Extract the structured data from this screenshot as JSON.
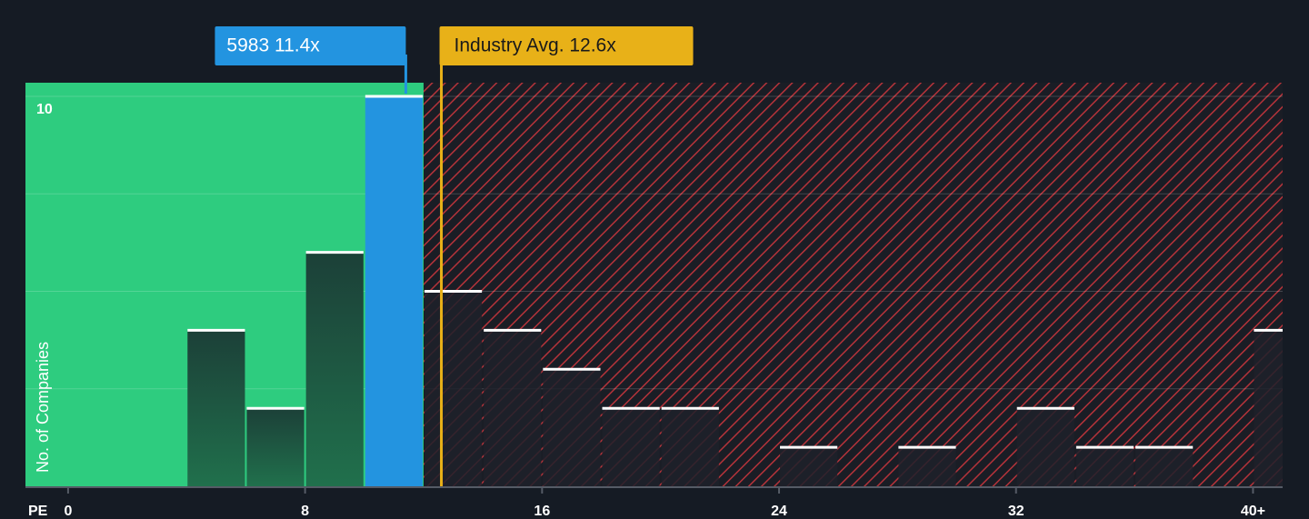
{
  "chart_data": {
    "type": "histogram",
    "bins": [
      0,
      2,
      4,
      6,
      8,
      10,
      12,
      14,
      16,
      18,
      20,
      22,
      24,
      26,
      28,
      30,
      32,
      34,
      36,
      38,
      40,
      42
    ],
    "values": [
      0,
      0,
      4,
      2,
      6,
      10,
      5,
      4,
      3,
      2,
      2,
      0,
      1,
      0,
      1,
      0,
      2,
      1,
      1,
      0,
      4
    ],
    "xlabel": "PE",
    "ylabel": "No. of Companies",
    "xlim": [
      -1.44,
      41
    ],
    "ylim": [
      0,
      10.35
    ],
    "xticks": [
      0,
      8,
      16,
      24,
      32,
      {
        "value": 40,
        "label": "40+"
      }
    ],
    "yticks": [
      10
    ],
    "ygrid": [
      2.5,
      5,
      7.5,
      10
    ],
    "company": {
      "label": "5983 11.4x",
      "value": 11.4,
      "color": "#2394e0"
    },
    "industry": {
      "label": "Industry Avg. 12.6x",
      "value": 12.6,
      "color": "#e8b118"
    },
    "below_color": "#2ecc7f",
    "above_color": "#c0392b"
  }
}
